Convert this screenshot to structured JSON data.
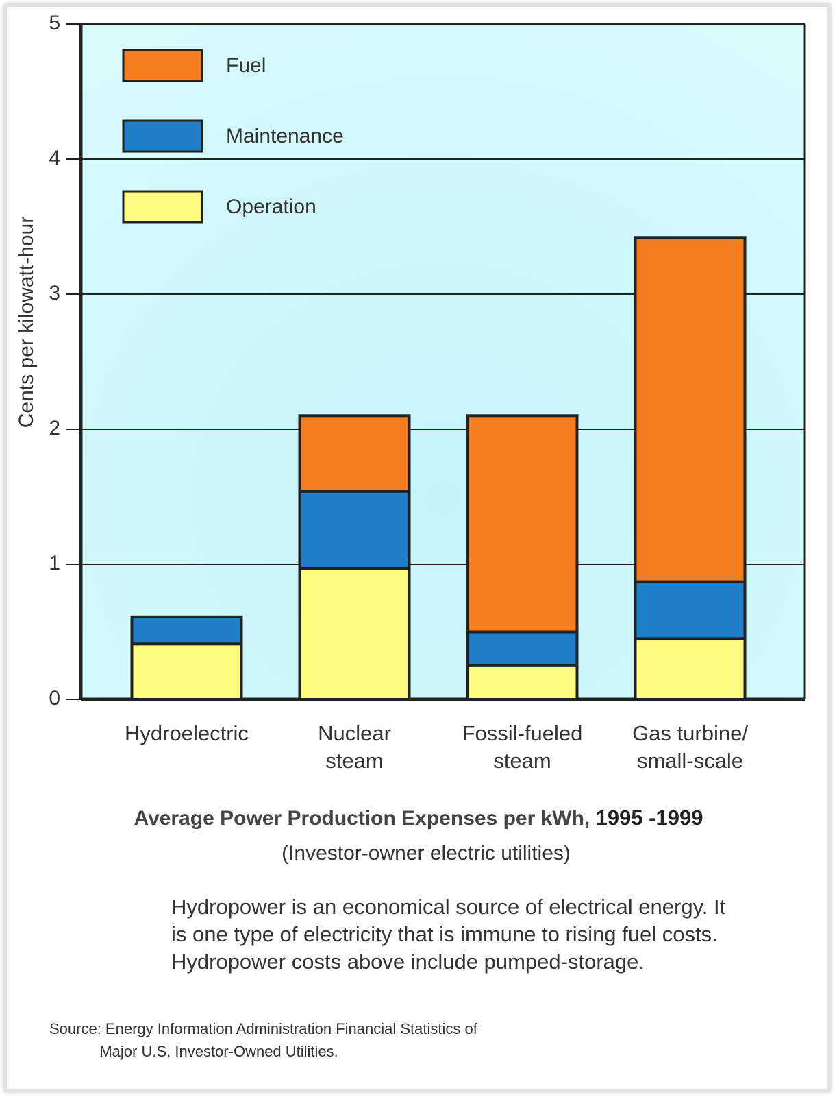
{
  "chart_data": {
    "type": "stacked_bar",
    "title": "Average Power Production Expenses per kWh,",
    "title_years": "1995 -1999",
    "subtitle": "(Investor-owner electric utilities)",
    "note": "Hydropower is an economical source of electrical energy.  It is one type of electricity that is immune to rising fuel costs.  Hydropower costs above  include pumped-storage.",
    "source": "Source: Energy Information Administration Financial Statistics of\n            Major U.S. Investor-Owned Utilities.",
    "y_label": "Cents per kilowatt-hour",
    "categories": [
      "Hydroelectric",
      "Nuclear\nsteam",
      "Fossil-fueled\nsteam",
      "Gas turbine/\nsmall-scale"
    ],
    "series": [
      {
        "name": "Operation",
        "color": "#fdfb7f",
        "values": [
          0.41,
          0.97,
          0.25,
          0.45
        ]
      },
      {
        "name": "Maintenance",
        "color": "#1f7fc8",
        "values": [
          0.2,
          0.57,
          0.25,
          0.42
        ]
      },
      {
        "name": "Fuel",
        "color": "#f57c1f",
        "values": [
          0,
          0.56,
          1.6,
          2.55
        ]
      }
    ],
    "ylim": [
      0,
      5
    ],
    "yticks": [
      0,
      1,
      2,
      3,
      4,
      5
    ],
    "grid": true,
    "legend": "top-left"
  }
}
